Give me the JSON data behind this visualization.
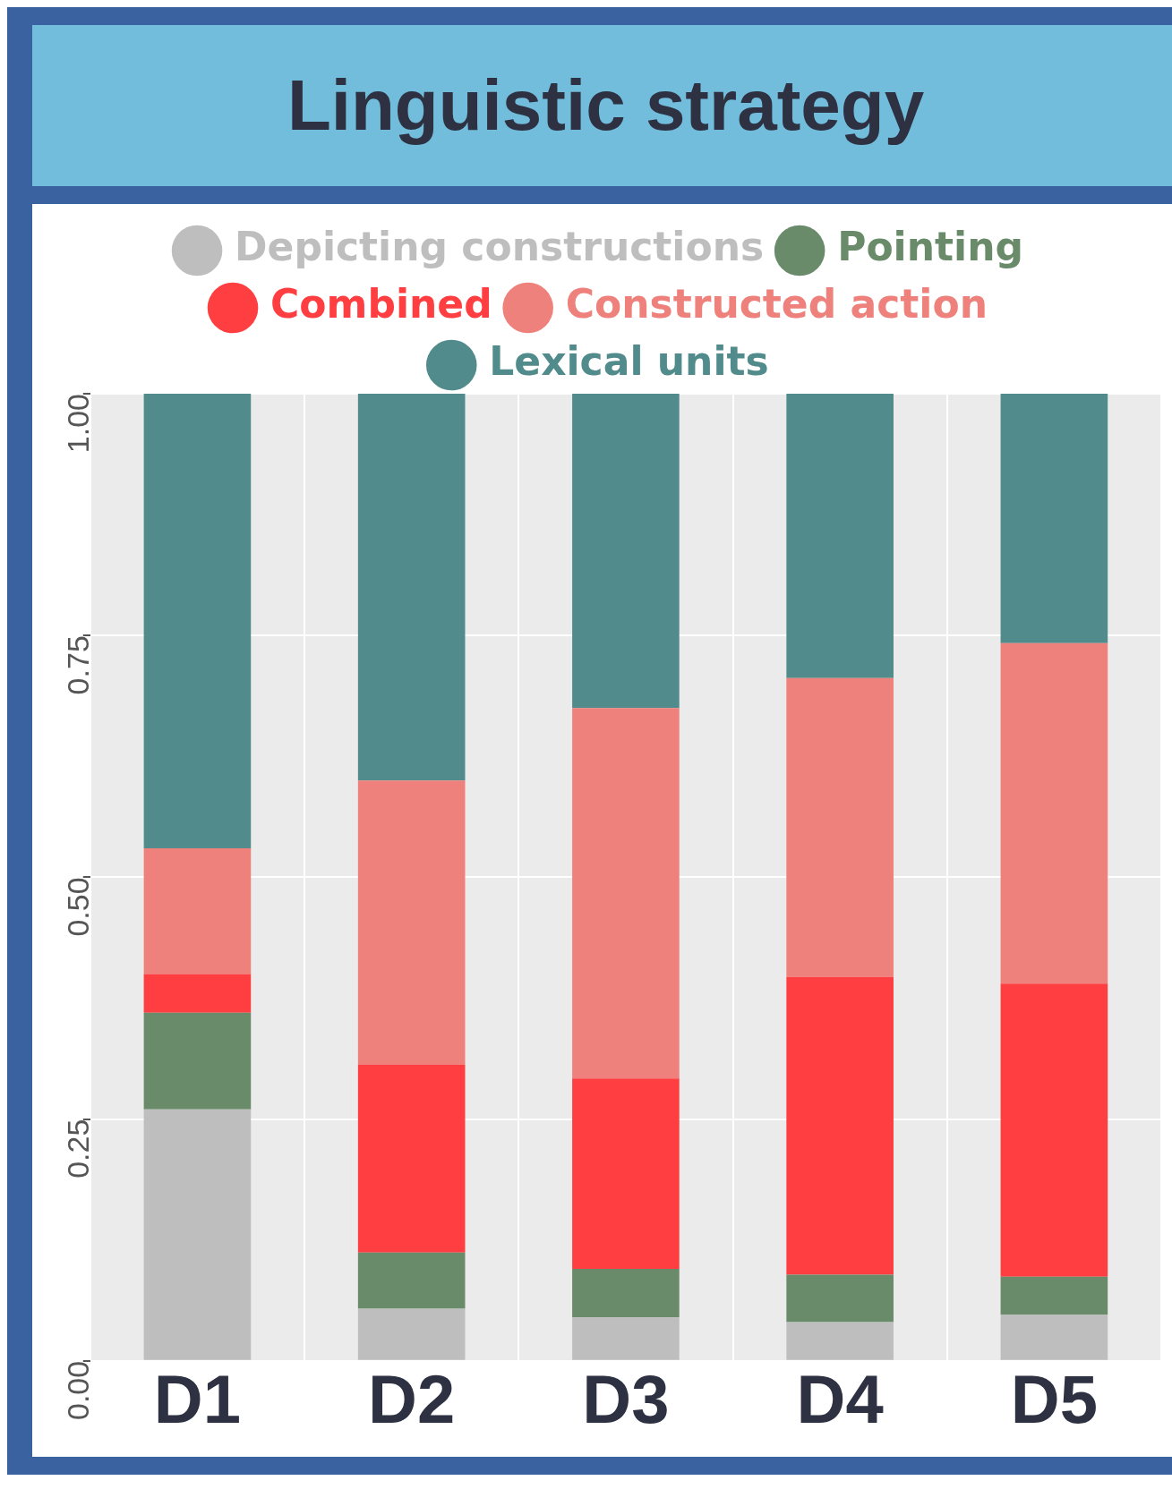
{
  "chart_data": {
    "type": "bar",
    "title": "Linguistic strategy",
    "stacked": true,
    "legend": "top",
    "grid": true,
    "categories": [
      "D1",
      "D2",
      "D3",
      "D4",
      "D5"
    ],
    "ylim": [
      0,
      1
    ],
    "yticks": [
      {
        "value": 0,
        "label": "0.00"
      },
      {
        "value": 0.25,
        "label": "0.25"
      },
      {
        "value": 0.5,
        "label": "0.50"
      },
      {
        "value": 0.75,
        "label": "0.75"
      },
      {
        "value": 1,
        "label": "1.00"
      }
    ],
    "series": [
      {
        "name": "Depicting constructions",
        "color": "#bebebe",
        "values": [
          0.26,
          0.054,
          0.045,
          0.04,
          0.048
        ]
      },
      {
        "name": "Pointing",
        "color": "#698b69",
        "values": [
          0.1,
          0.058,
          0.05,
          0.049,
          0.039
        ]
      },
      {
        "name": "Combined",
        "color": "#ff3e41",
        "values": [
          0.04,
          0.194,
          0.197,
          0.308,
          0.303
        ]
      },
      {
        "name": "Constructed action",
        "color": "#ee817c",
        "values": [
          0.13,
          0.294,
          0.383,
          0.309,
          0.352
        ]
      },
      {
        "name": "Lexical units",
        "color": "#528b8b",
        "values": [
          0.47,
          0.4,
          0.325,
          0.294,
          0.258
        ]
      }
    ]
  }
}
